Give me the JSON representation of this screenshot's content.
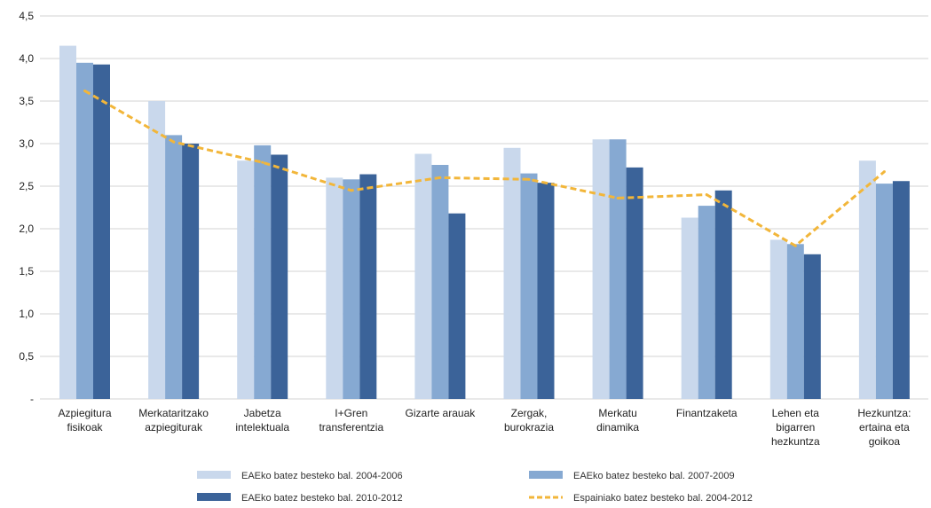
{
  "chart_data": {
    "type": "bar",
    "categories": [
      [
        "Azpiegitura",
        "fisikoak"
      ],
      [
        "Merkataritzako",
        "azpiegiturak"
      ],
      [
        "Jabetza",
        "intelektuala"
      ],
      [
        "I+Gren",
        "transferentzia"
      ],
      [
        "Gizarte arauak"
      ],
      [
        "Zergak,",
        "burokrazia"
      ],
      [
        "Merkatu",
        "dinamika"
      ],
      [
        "Finantzaketa"
      ],
      [
        "Lehen eta",
        "bigarren",
        "hezkuntza"
      ],
      [
        "Hezkuntza:",
        "ertaina eta",
        "goikoa"
      ]
    ],
    "series": [
      {
        "name": "EAEko batez besteko bal. 2004-2006",
        "kind": "bar",
        "color": "#c9d8ec",
        "values": [
          4.15,
          3.5,
          2.8,
          2.6,
          2.88,
          2.95,
          3.05,
          2.13,
          1.87,
          2.8
        ]
      },
      {
        "name": "EAEko batez besteko bal. 2007-2009",
        "kind": "bar",
        "color": "#86a9d2",
        "values": [
          3.95,
          3.1,
          2.98,
          2.58,
          2.75,
          2.65,
          3.05,
          2.27,
          1.82,
          2.53
        ]
      },
      {
        "name": "EAEko batez besteko bal. 2010-2012",
        "kind": "bar",
        "color": "#3b6399",
        "values": [
          3.93,
          3.0,
          2.87,
          2.64,
          2.18,
          2.54,
          2.72,
          2.45,
          1.7,
          2.56
        ]
      },
      {
        "name": "Espainiako batez besteko bal.  2004-2012",
        "kind": "line",
        "color": "#f2b63a",
        "values": [
          3.62,
          3.02,
          2.78,
          2.45,
          2.6,
          2.58,
          2.36,
          2.4,
          1.8,
          2.67
        ]
      }
    ],
    "yticks": [
      "-",
      "0,5",
      "1,0",
      "1,5",
      "2,0",
      "2,5",
      "3,0",
      "3,5",
      "4,0",
      "4,5"
    ],
    "ylim": [
      0,
      4.5
    ],
    "grid": true,
    "legend_placement": "bottom"
  }
}
